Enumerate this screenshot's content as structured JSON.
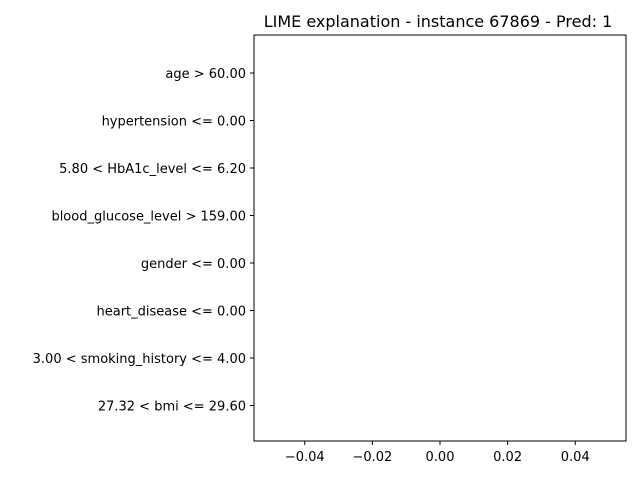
{
  "chart_data": {
    "type": "bar",
    "orientation": "horizontal",
    "title": "LIME explanation - instance 67869 - Pred: 1",
    "xlabel": "",
    "ylabel": "",
    "categories": [
      "age > 60.00",
      "hypertension <= 0.00",
      "5.80 < HbA1c_level <= 6.20",
      "blood_glucose_level > 159.00",
      "gender <= 0.00",
      "heart_disease <= 0.00",
      "3.00 < smoking_history <= 4.00",
      "27.32 < bmi <= 29.60"
    ],
    "values": [
      0,
      0,
      0,
      0,
      0,
      0,
      0,
      0
    ],
    "xlim": [
      -0.055,
      0.055
    ],
    "x_ticks": [
      -0.04,
      -0.02,
      0.0,
      0.02,
      0.04
    ],
    "x_tick_labels": [
      "−0.04",
      "−0.02",
      "0.00",
      "0.02",
      "0.04"
    ],
    "grid": false,
    "colors": {
      "axis": "#000000",
      "background": "#ffffff",
      "bar_positive": "#2ca02c",
      "bar_negative": "#d62728"
    }
  }
}
